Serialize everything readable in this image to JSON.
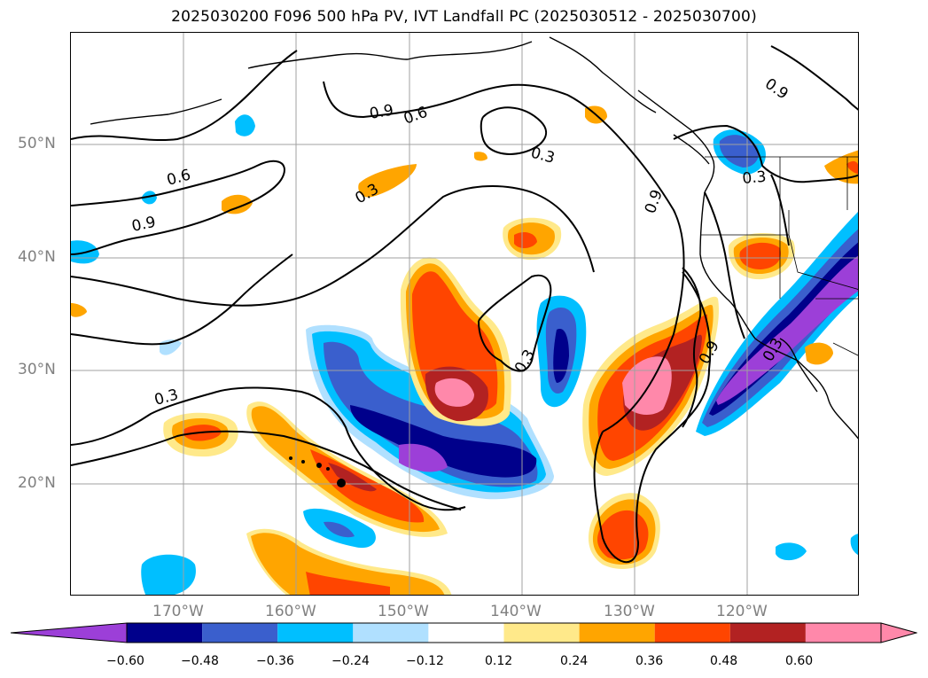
{
  "title": "2025030200 F096 500 hPa PV, IVT Landfall PC (2025030512 - 2025030700)",
  "map": {
    "lat_labels": [
      "50°N",
      "40°N",
      "30°N",
      "20°N"
    ],
    "lon_labels": [
      "170°W",
      "160°W",
      "150°W",
      "140°W",
      "130°W",
      "120°W"
    ],
    "contour_labels": [
      "0.9",
      "0.6",
      "0.3",
      "0.6",
      "0.9",
      "0.3",
      "0.9",
      "0.3",
      "0.3",
      "0.3",
      "0.9",
      "0.9",
      "0.3"
    ],
    "gridlines": true
  },
  "colorbar": {
    "tick_labels": [
      "−0.60",
      "−0.48",
      "−0.36",
      "−0.24",
      "−0.12",
      "0.12",
      "0.24",
      "0.36",
      "0.48",
      "0.60"
    ],
    "colors": [
      "#9c3fd8",
      "#00008b",
      "#3a5fcd",
      "#00bfff",
      "#b0e0ff",
      "#ffffff",
      "#ffe98a",
      "#ffa500",
      "#ff4500",
      "#b22222",
      "#ff88aa",
      "#ff88aa"
    ],
    "extend": "both"
  }
}
